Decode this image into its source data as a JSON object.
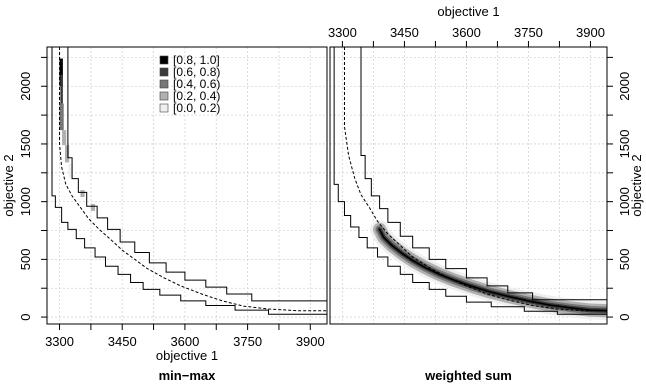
{
  "chart_data": [
    {
      "type": "area",
      "panel": "left",
      "title": "min−max",
      "xlabel": "objective 1",
      "ylabel": "objective 2",
      "xlim": [
        3270,
        3940
      ],
      "ylim": [
        -60,
        2340
      ],
      "x_ticks": [
        "3300",
        "3450",
        "3600",
        "3750",
        "3900"
      ],
      "y_ticks": [
        "0",
        "500",
        "1000",
        "1500",
        "2000"
      ],
      "x_axis_position": "bottom",
      "y_axis_position": "left",
      "grid": true,
      "legend": {
        "placement": "top-center",
        "entries": [
          {
            "label": "[0.8, 1.0]",
            "color": "#000000"
          },
          {
            "label": "[0.6, 0.8)",
            "color": "#3a3a3a"
          },
          {
            "label": "[0.4, 0.6)",
            "color": "#777777"
          },
          {
            "label": "[0.2, 0.4)",
            "color": "#b0b0b0"
          },
          {
            "label": "[0.0, 0.2)",
            "color": "#efefef"
          }
        ]
      },
      "attainment_lines": {
        "best": [
          [
            3282,
            2340
          ],
          [
            3282,
            1050
          ],
          [
            3290,
            1050
          ],
          [
            3290,
            950
          ],
          [
            3305,
            950
          ],
          [
            3305,
            820
          ],
          [
            3320,
            820
          ],
          [
            3320,
            760
          ],
          [
            3340,
            760
          ],
          [
            3340,
            680
          ],
          [
            3360,
            680
          ],
          [
            3360,
            600
          ],
          [
            3385,
            600
          ],
          [
            3385,
            520
          ],
          [
            3410,
            520
          ],
          [
            3410,
            440
          ],
          [
            3440,
            440
          ],
          [
            3440,
            370
          ],
          [
            3470,
            370
          ],
          [
            3470,
            300
          ],
          [
            3500,
            300
          ],
          [
            3500,
            240
          ],
          [
            3540,
            240
          ],
          [
            3540,
            190
          ],
          [
            3590,
            190
          ],
          [
            3590,
            140
          ],
          [
            3650,
            140
          ],
          [
            3650,
            100
          ],
          [
            3720,
            100
          ],
          [
            3720,
            60
          ],
          [
            3800,
            60
          ],
          [
            3800,
            25
          ],
          [
            3940,
            25
          ]
        ],
        "median": [
          [
            3300,
            2340
          ],
          [
            3300,
            1500
          ],
          [
            3305,
            1300
          ],
          [
            3315,
            1150
          ],
          [
            3330,
            1050
          ],
          [
            3350,
            950
          ],
          [
            3370,
            850
          ],
          [
            3395,
            760
          ],
          [
            3420,
            680
          ],
          [
            3450,
            580
          ],
          [
            3480,
            500
          ],
          [
            3510,
            420
          ],
          [
            3550,
            340
          ],
          [
            3590,
            270
          ],
          [
            3640,
            200
          ],
          [
            3690,
            140
          ],
          [
            3740,
            95
          ],
          [
            3800,
            70
          ],
          [
            3870,
            55
          ],
          [
            3940,
            55
          ]
        ],
        "worst": [
          [
            3320,
            2340
          ],
          [
            3320,
            1380
          ],
          [
            3330,
            1380
          ],
          [
            3330,
            1200
          ],
          [
            3345,
            1200
          ],
          [
            3345,
            1080
          ],
          [
            3365,
            1080
          ],
          [
            3365,
            960
          ],
          [
            3390,
            960
          ],
          [
            3390,
            860
          ],
          [
            3415,
            860
          ],
          [
            3415,
            760
          ],
          [
            3445,
            760
          ],
          [
            3445,
            650
          ],
          [
            3480,
            650
          ],
          [
            3480,
            560
          ],
          [
            3515,
            560
          ],
          [
            3515,
            470
          ],
          [
            3555,
            470
          ],
          [
            3555,
            390
          ],
          [
            3600,
            390
          ],
          [
            3600,
            320
          ],
          [
            3650,
            320
          ],
          [
            3650,
            260
          ],
          [
            3700,
            260
          ],
          [
            3700,
            200
          ],
          [
            3760,
            200
          ],
          [
            3760,
            140
          ],
          [
            3940,
            140
          ]
        ]
      },
      "density_cells": [
        {
          "x": 3300,
          "y": 2000,
          "w": 8,
          "h": 240,
          "level": 4
        },
        {
          "x": 3302,
          "y": 1850,
          "w": 6,
          "h": 250,
          "level": 3
        },
        {
          "x": 3300,
          "y": 1620,
          "w": 10,
          "h": 230,
          "level": 2
        },
        {
          "x": 3306,
          "y": 1490,
          "w": 10,
          "h": 130,
          "level": 1
        },
        {
          "x": 3313,
          "y": 1340,
          "w": 10,
          "h": 150,
          "level": 1
        },
        {
          "x": 3322,
          "y": 1210,
          "w": 10,
          "h": 120,
          "level": 0
        },
        {
          "x": 3350,
          "y": 1040,
          "w": 10,
          "h": 60,
          "level": 1
        },
        {
          "x": 3375,
          "y": 920,
          "w": 10,
          "h": 60,
          "level": 1
        }
      ]
    },
    {
      "type": "area",
      "panel": "right",
      "title": "weighted sum",
      "xlabel": "objective 1",
      "ylabel": "objective 2",
      "xlim": [
        3270,
        3940
      ],
      "ylim": [
        -60,
        2340
      ],
      "x_ticks": [
        "3300",
        "3450",
        "3600",
        "3750",
        "3900"
      ],
      "y_ticks": [
        "0",
        "500",
        "1000",
        "1500",
        "2000"
      ],
      "x_axis_position": "top",
      "y_axis_position": "right",
      "grid": true,
      "attainment_lines": {
        "best": [
          [
            3280,
            2340
          ],
          [
            3280,
            1150
          ],
          [
            3290,
            1150
          ],
          [
            3290,
            1000
          ],
          [
            3305,
            1000
          ],
          [
            3305,
            880
          ],
          [
            3320,
            880
          ],
          [
            3320,
            780
          ],
          [
            3340,
            780
          ],
          [
            3340,
            690
          ],
          [
            3360,
            690
          ],
          [
            3360,
            600
          ],
          [
            3385,
            600
          ],
          [
            3385,
            520
          ],
          [
            3410,
            520
          ],
          [
            3410,
            440
          ],
          [
            3440,
            440
          ],
          [
            3440,
            370
          ],
          [
            3470,
            370
          ],
          [
            3470,
            300
          ],
          [
            3510,
            300
          ],
          [
            3510,
            240
          ],
          [
            3550,
            240
          ],
          [
            3550,
            180
          ],
          [
            3600,
            180
          ],
          [
            3600,
            130
          ],
          [
            3660,
            130
          ],
          [
            3660,
            90
          ],
          [
            3740,
            90
          ],
          [
            3740,
            50
          ],
          [
            3820,
            50
          ],
          [
            3820,
            25
          ],
          [
            3940,
            25
          ]
        ],
        "median": [
          [
            3305,
            2340
          ],
          [
            3305,
            1650
          ],
          [
            3315,
            1400
          ],
          [
            3330,
            1200
          ],
          [
            3345,
            1060
          ],
          [
            3365,
            950
          ],
          [
            3385,
            830
          ],
          [
            3410,
            720
          ],
          [
            3440,
            620
          ],
          [
            3470,
            520
          ],
          [
            3510,
            430
          ],
          [
            3550,
            350
          ],
          [
            3600,
            270
          ],
          [
            3650,
            200
          ],
          [
            3700,
            150
          ],
          [
            3760,
            100
          ],
          [
            3820,
            70
          ],
          [
            3880,
            55
          ],
          [
            3940,
            55
          ]
        ],
        "worst": [
          [
            3345,
            2340
          ],
          [
            3345,
            1400
          ],
          [
            3355,
            1400
          ],
          [
            3355,
            1200
          ],
          [
            3370,
            1200
          ],
          [
            3370,
            1050
          ],
          [
            3390,
            1050
          ],
          [
            3390,
            940
          ],
          [
            3410,
            940
          ],
          [
            3410,
            820
          ],
          [
            3440,
            820
          ],
          [
            3440,
            700
          ],
          [
            3470,
            700
          ],
          [
            3470,
            600
          ],
          [
            3510,
            600
          ],
          [
            3510,
            500
          ],
          [
            3550,
            500
          ],
          [
            3550,
            420
          ],
          [
            3600,
            420
          ],
          [
            3600,
            340
          ],
          [
            3650,
            340
          ],
          [
            3650,
            270
          ],
          [
            3700,
            270
          ],
          [
            3700,
            210
          ],
          [
            3760,
            210
          ],
          [
            3760,
            150
          ],
          [
            3940,
            150
          ]
        ]
      },
      "density_band": {
        "centerline": [
          [
            3390,
            760
          ],
          [
            3400,
            690
          ],
          [
            3420,
            620
          ],
          [
            3445,
            550
          ],
          [
            3470,
            490
          ],
          [
            3500,
            430
          ],
          [
            3535,
            370
          ],
          [
            3570,
            320
          ],
          [
            3610,
            270
          ],
          [
            3655,
            220
          ],
          [
            3700,
            180
          ],
          [
            3750,
            140
          ],
          [
            3800,
            105
          ],
          [
            3850,
            80
          ],
          [
            3900,
            60
          ],
          [
            3940,
            55
          ]
        ],
        "layers": [
          {
            "level": 0,
            "width": 34
          },
          {
            "level": 1,
            "width": 24
          },
          {
            "level": 2,
            "width": 15
          },
          {
            "level": 3,
            "width": 8
          },
          {
            "level": 4,
            "width": 3
          }
        ]
      }
    }
  ]
}
